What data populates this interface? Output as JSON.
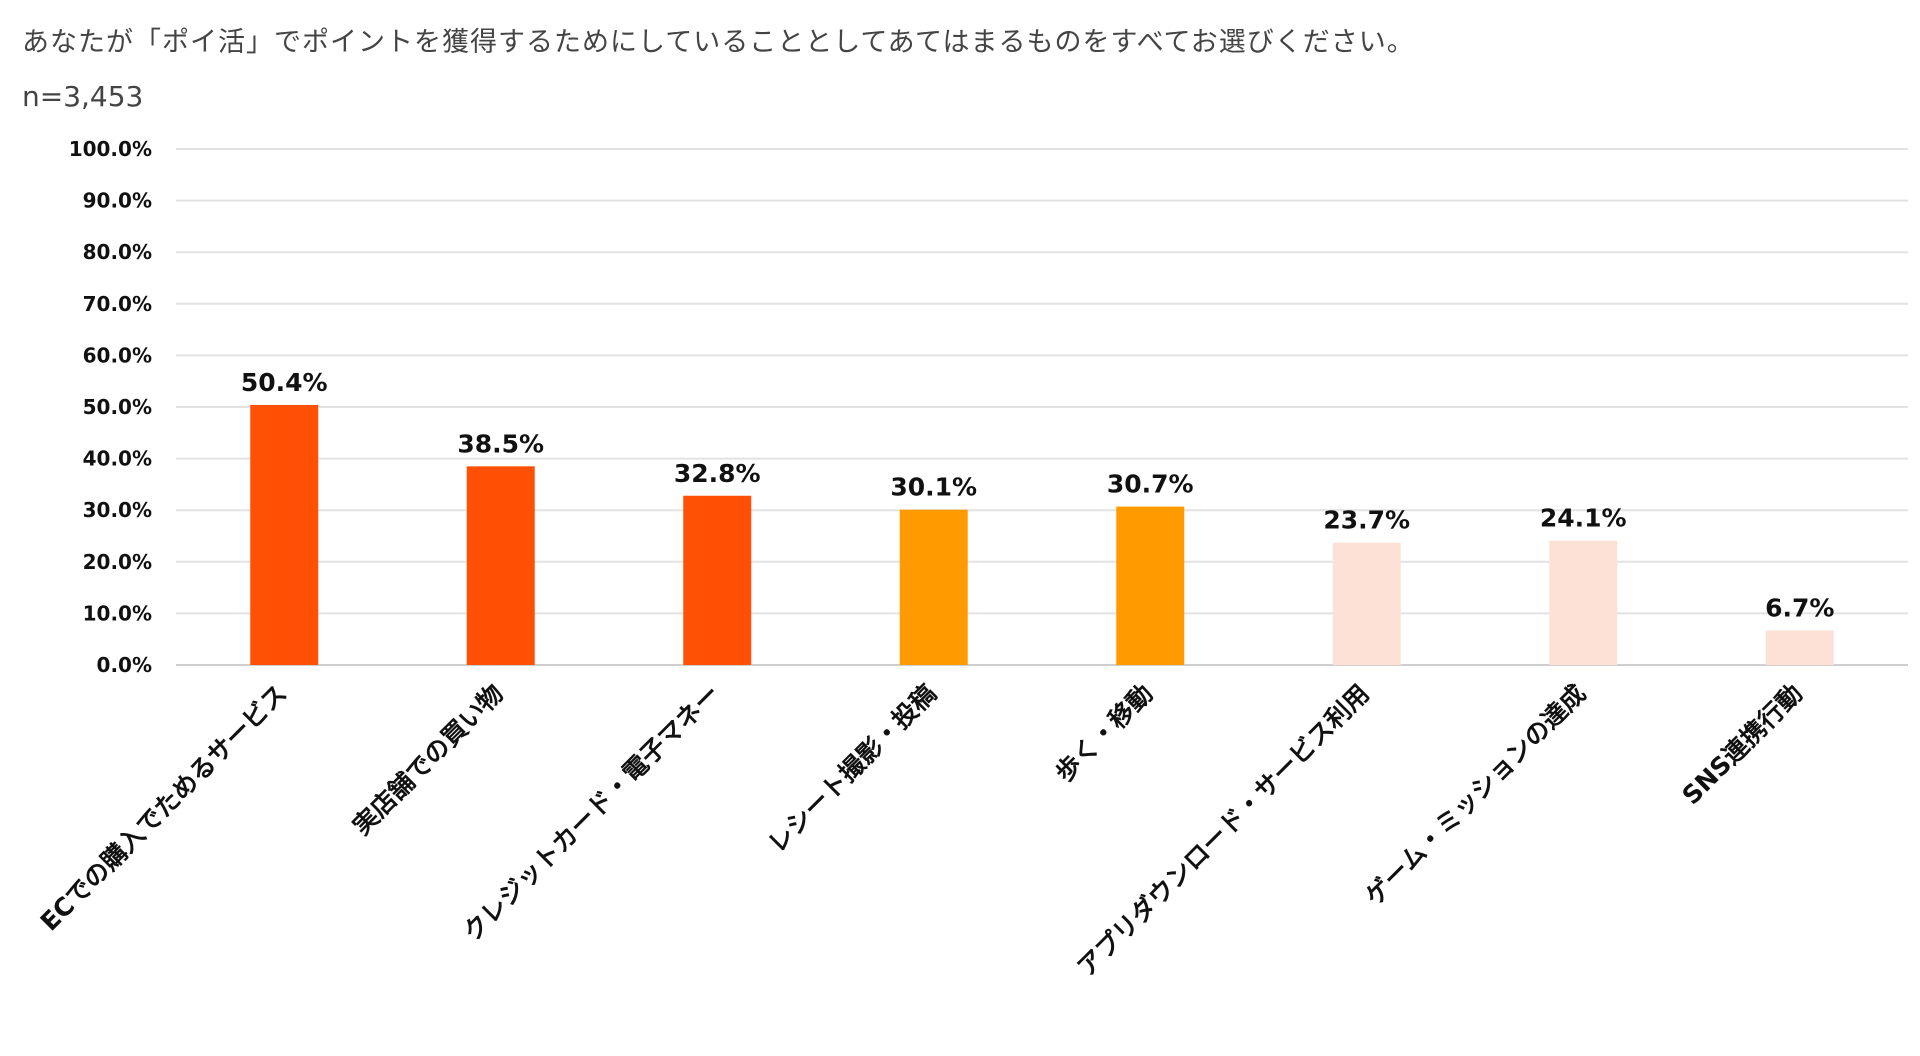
{
  "chart_data": {
    "type": "bar",
    "title": "あなたが「ポイ活」でポイントを獲得するためにしていることとしてあてはまるものをすべてお選びください。",
    "subtitle": "n=3,453",
    "xlabel": "",
    "ylabel": "",
    "ylim": [
      0,
      100
    ],
    "yticks": [
      "0.0%",
      "10.0%",
      "20.0%",
      "30.0%",
      "40.0%",
      "50.0%",
      "60.0%",
      "70.0%",
      "80.0%",
      "90.0%",
      "100.0%"
    ],
    "grid": true,
    "legend": "none",
    "categories": [
      "ECでの購入でためるサービス",
      "実店舗での買い物",
      "クレジットカード・電子マネー",
      "レシート撮影・投稿",
      "歩く・移動",
      "アプリダウンロード・サービス利用",
      "ゲーム・ミッションの達成",
      "SNS連携行動"
    ],
    "values": [
      50.4,
      38.5,
      32.8,
      30.1,
      30.7,
      23.7,
      24.1,
      6.7
    ],
    "data_labels": [
      "50.4%",
      "38.5%",
      "32.8%",
      "30.1%",
      "30.7%",
      "23.7%",
      "24.1%",
      "6.7%"
    ],
    "bar_colors": [
      "#FF5005",
      "#FF5005",
      "#FF5005",
      "#FF9A00",
      "#FF9A00",
      "#FDE1D6",
      "#FDE1D6",
      "#FDE1D6"
    ]
  }
}
